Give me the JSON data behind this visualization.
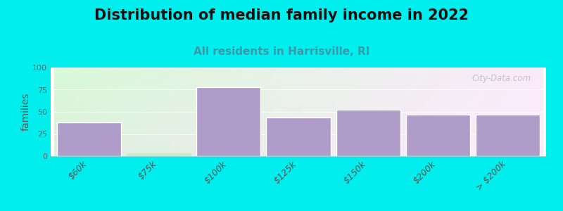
{
  "title": "Distribution of median family income in 2022",
  "subtitle": "All residents in Harrisville, RI",
  "categories": [
    "$60k",
    "$75k",
    "$100k",
    "$125k",
    "$150k",
    "$200k",
    "> $200k"
  ],
  "values": [
    38,
    3,
    78,
    44,
    52,
    47,
    47
  ],
  "bar_color": "#b09cc8",
  "highlight_color": "#ceeacc",
  "highlight_index": 1,
  "ylabel": "families",
  "ylim": [
    0,
    100
  ],
  "yticks": [
    0,
    25,
    50,
    75,
    100
  ],
  "background_color": "#00eeee",
  "plot_bg_left_top": "#d8f0d8",
  "plot_bg_right": "#f5f8f0",
  "title_fontsize": 15,
  "subtitle_fontsize": 11,
  "title_color": "#111111",
  "subtitle_color": "#3a9aaa",
  "watermark": "City-Data.com",
  "bar_width": 0.92
}
